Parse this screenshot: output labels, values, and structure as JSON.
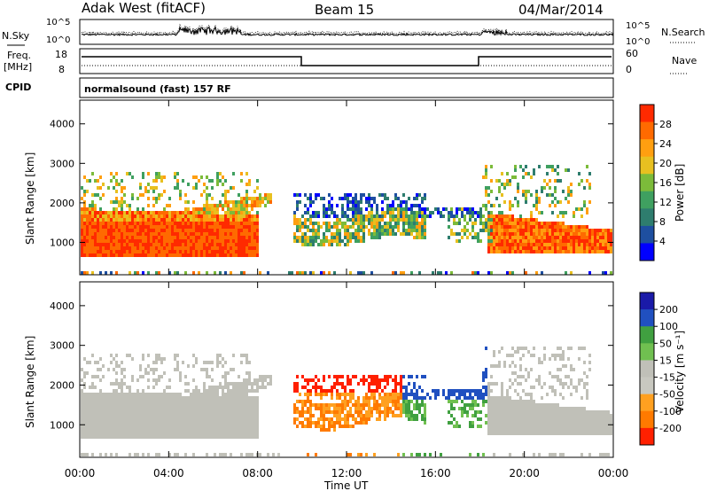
{
  "header": {
    "title": "Adak West (fitACF)",
    "beam": "Beam 15",
    "date": "04/Mar/2014"
  },
  "labels": {
    "nsky": "N.Sky",
    "nsearch": "N.Search",
    "freq": "Freq.",
    "mhz": "[MHz]",
    "nave": "Nave",
    "cpid": "CPID",
    "cpid_value": "normalsound (fast) 157 RF"
  },
  "noise_ticks": {
    "top": "10^5",
    "bottom": "10^0"
  },
  "freq_ticks": {
    "left": [
      "18",
      "8"
    ],
    "right": [
      "60",
      "0"
    ]
  },
  "colors": {
    "power": [
      "#0000ff",
      "#1e4fa0",
      "#2e7d6e",
      "#3fa060",
      "#7cbb3a",
      "#e8c020",
      "#ff9f10",
      "#ff6a00",
      "#ff2a00"
    ],
    "velocity": [
      "#1a1aa8",
      "#2050c0",
      "#40a040",
      "#70c050",
      "#c0c0b8",
      "#c8c8c0",
      "#ffa020",
      "#ff7a00",
      "#ff2000"
    ]
  },
  "chart_data": [
    {
      "type": "heatmap",
      "name": "power-panel",
      "ylabel": "Slant Range [km]",
      "xlabel": "Time UT",
      "xticks": [
        "00:00",
        "04:00",
        "08:00",
        "12:00",
        "16:00",
        "20:00",
        "00:00"
      ],
      "yticks": [
        "1000",
        "2000",
        "3000",
        "4000"
      ],
      "xlim": [
        0,
        24
      ],
      "ylim": [
        180,
        4600
      ],
      "colorbar_label": "Power [dB]",
      "colorbar_ticks": [
        "4",
        "8",
        "12",
        "16",
        "20",
        "24",
        "28"
      ]
    },
    {
      "type": "heatmap",
      "name": "velocity-panel",
      "ylabel": "Slant Range [km]",
      "xlabel": "Time UT",
      "xticks": [
        "00:00",
        "04:00",
        "08:00",
        "12:00",
        "16:00",
        "20:00",
        "00:00"
      ],
      "yticks": [
        "1000",
        "2000",
        "3000",
        "4000"
      ],
      "xlim": [
        0,
        24
      ],
      "ylim": [
        180,
        4600
      ],
      "colorbar_label": "Velocity [m s⁻¹]",
      "colorbar_ticks": [
        "200",
        "100",
        "50",
        "15",
        "-15",
        "-50",
        "-100",
        "-200"
      ]
    }
  ],
  "axis": {
    "xlabel": "Time UT"
  }
}
